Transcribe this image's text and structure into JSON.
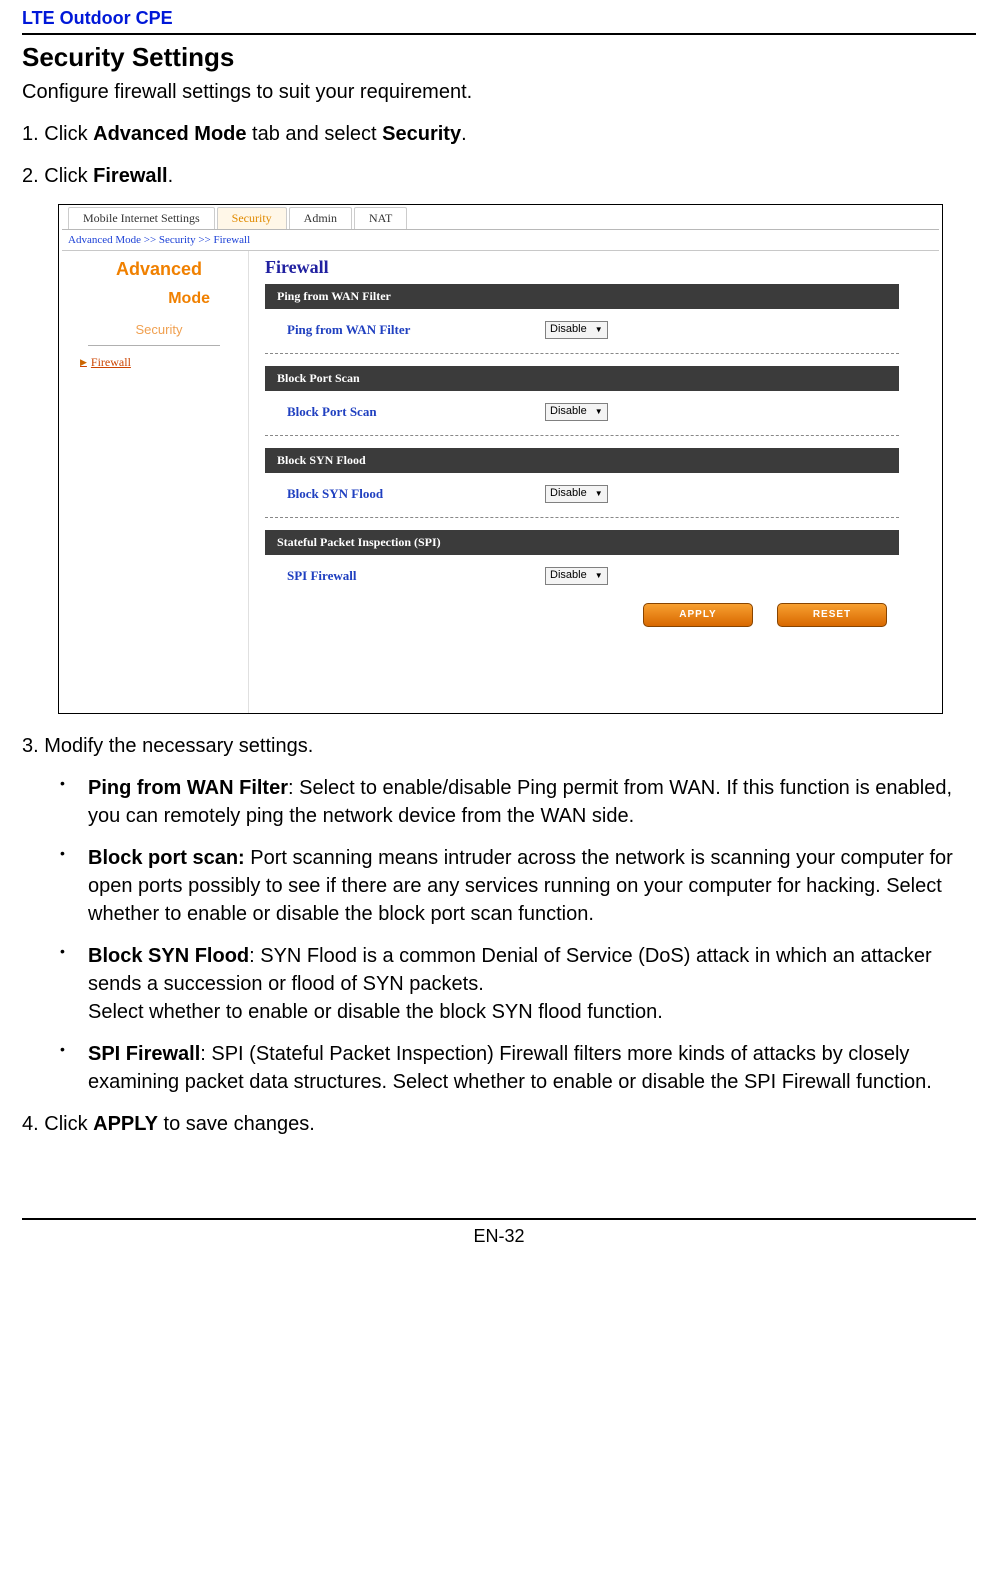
{
  "header": {
    "title": "LTE Outdoor CPE"
  },
  "section": {
    "title": "Security Settings",
    "desc": "Configure firewall settings to suit your requirement."
  },
  "steps": {
    "s1_num": "1.",
    "s1_pre": "Click ",
    "s1_b1": "Advanced Mode",
    "s1_mid": " tab and select ",
    "s1_b2": "Security",
    "s1_post": ".",
    "s2_num": "2.",
    "s2_pre": "Click ",
    "s2_b1": "Firewall",
    "s2_post": ".",
    "s3_num": "3.",
    "s3_text": "Modify the necessary settings.",
    "s4_num": "4.",
    "s4_pre": "Click ",
    "s4_b1": "APPLY",
    "s4_post": " to save changes."
  },
  "bullets": {
    "b1_title": "Ping from WAN Filter",
    "b1_body": ": Select to enable/disable Ping permit from WAN. If this function is enabled, you can remotely ping the network device from the WAN side.",
    "b2_title": "Block port scan:",
    "b2_body": " Port scanning means intruder across the network is scanning your computer for open ports possibly to see if there are any services running on your computer for hacking. Select whether to enable or disable the block port scan function.",
    "b3_title": "Block SYN Flood",
    "b3_body_a": ": SYN Flood is a common Denial of Service (DoS) attack in which an attacker sends a succession or flood of SYN packets.",
    "b3_body_b": "Select whether to enable or disable the block SYN flood function.",
    "b4_title": "SPI Firewall",
    "b4_body": ": SPI (Stateful Packet Inspection) Firewall filters more kinds of attacks by closely examining packet data structures. Select whether to enable or disable the SPI Firewall function."
  },
  "shot": {
    "tabs": {
      "t1": "Mobile Internet Settings",
      "t2": "Security",
      "t3": "Admin",
      "t4": "NAT"
    },
    "breadcrumb": "Advanced Mode >> Security >> Firewall",
    "sidebar": {
      "advanced": "Advanced",
      "mode": "Mode",
      "security": "Security",
      "link_arrow": "▶",
      "link_label": "Firewall"
    },
    "panel": {
      "title": "Firewall",
      "sec1": {
        "header": "Ping from WAN Filter",
        "label": "Ping from WAN Filter",
        "value": "Disable"
      },
      "sec2": {
        "header": "Block Port Scan",
        "label": "Block Port Scan",
        "value": "Disable"
      },
      "sec3": {
        "header": "Block SYN Flood",
        "label": "Block SYN Flood",
        "value": "Disable"
      },
      "sec4": {
        "header": "Stateful Packet Inspection (SPI)",
        "label": "SPI Firewall",
        "value": "Disable"
      },
      "buttons": {
        "apply": "APPLY",
        "reset": "RESET"
      }
    }
  },
  "footer": {
    "page": "EN-32"
  }
}
